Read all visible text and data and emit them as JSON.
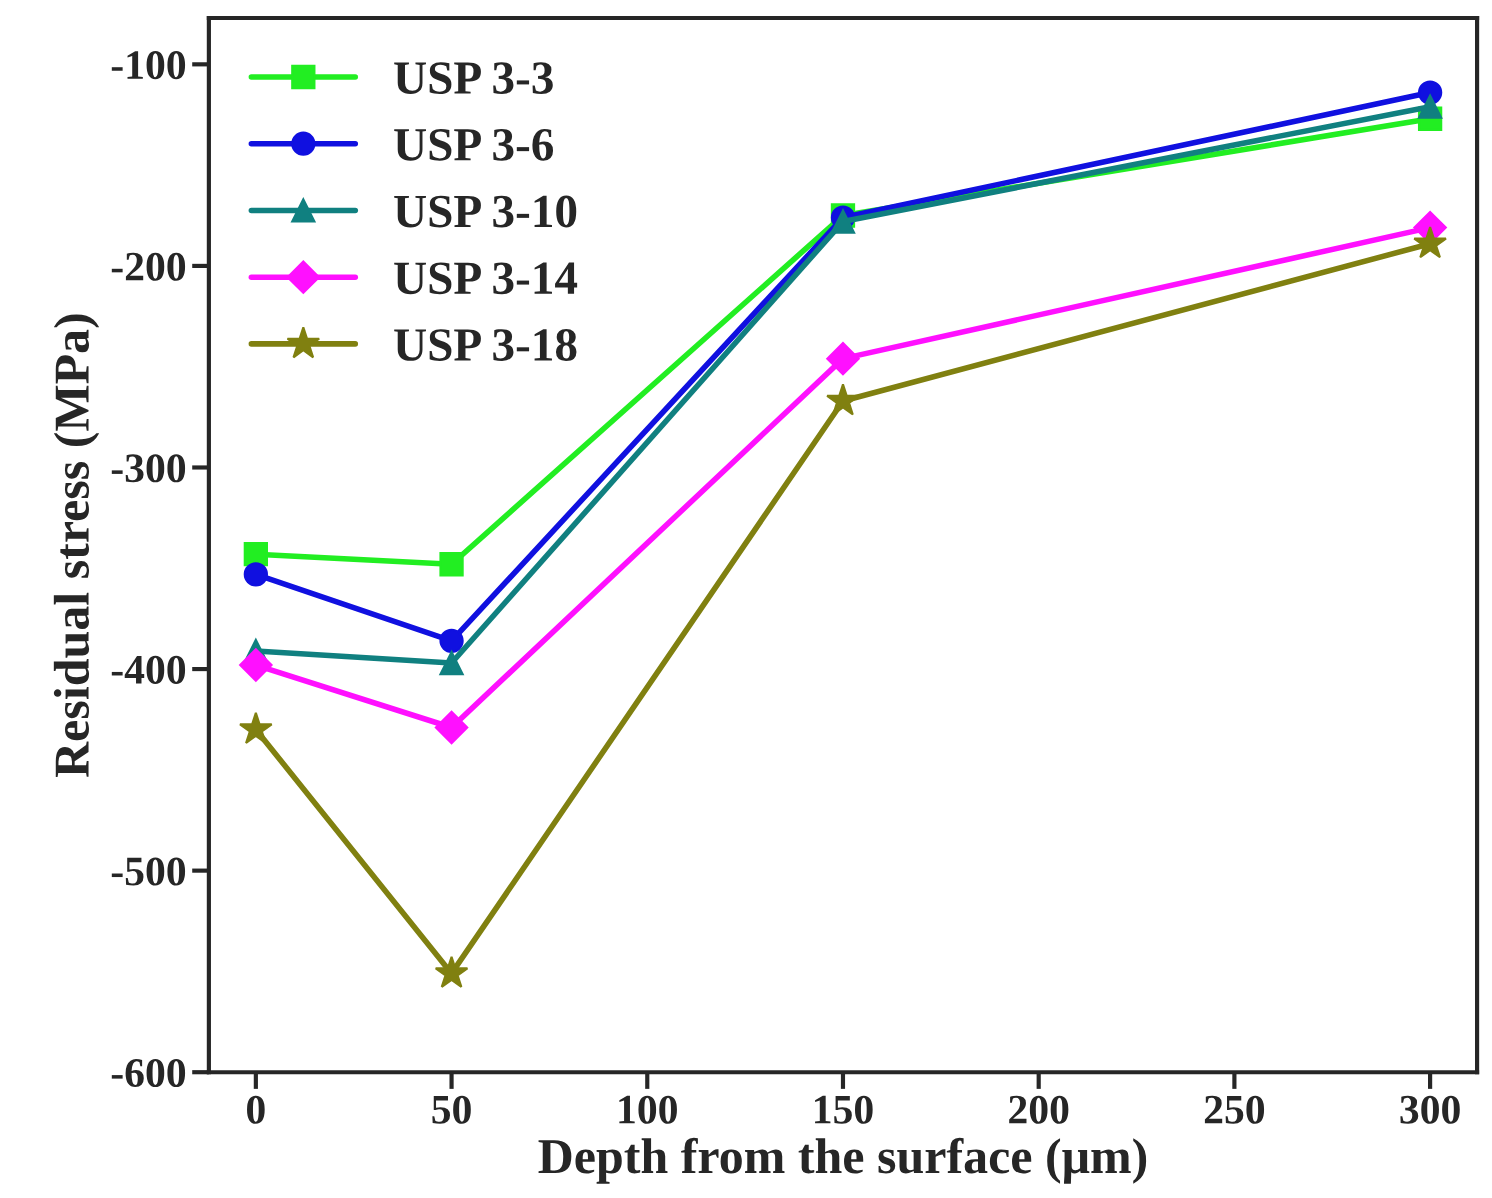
{
  "chart_data": {
    "type": "line",
    "xlabel": "Depth from the surface (μm)",
    "ylabel": "Residual stress (MPa)",
    "x": [
      0,
      50,
      150,
      300
    ],
    "series": [
      {
        "name": "USP 3-3",
        "color": "#22ee22",
        "marker": "square",
        "values": [
          -343,
          -348,
          -175,
          -127
        ]
      },
      {
        "name": "USP 3-6",
        "color": "#1010e0",
        "marker": "circle",
        "values": [
          -353,
          -386,
          -176,
          -114
        ]
      },
      {
        "name": "USP 3-10",
        "color": "#108080",
        "marker": "triangle",
        "values": [
          -391,
          -397,
          -178,
          -121
        ]
      },
      {
        "name": "USP 3-14",
        "color": "#ff10ff",
        "marker": "diamond",
        "values": [
          -398,
          -429,
          -246,
          -181
        ]
      },
      {
        "name": "USP 3-18",
        "color": "#808010",
        "marker": "star",
        "values": [
          -430,
          -551,
          -267,
          -189
        ]
      }
    ],
    "xlim": [
      -12,
      312
    ],
    "xticks": [
      0,
      50,
      100,
      150,
      200,
      250,
      300
    ],
    "ylim": [
      -600,
      -77
    ],
    "yticks": [
      -600,
      -500,
      -400,
      -300,
      -200,
      -100
    ],
    "grid": false,
    "legend": "top left",
    "line_style": "solid"
  }
}
